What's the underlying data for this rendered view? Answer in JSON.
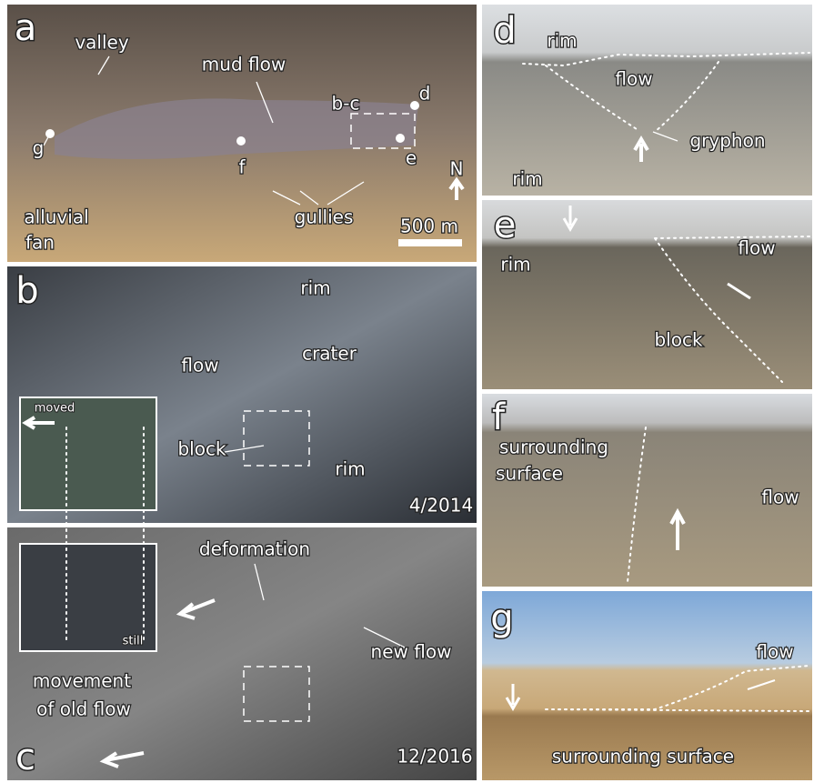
{
  "panels": [
    {
      "label": "a",
      "texts": [
        "valley",
        "mud flow",
        "b-c",
        "d",
        "g",
        "f",
        "e",
        "N",
        "alluvial",
        "fan",
        "gullies",
        "500 m"
      ]
    },
    {
      "label": "b",
      "texts": [
        "rim",
        "flow",
        "crater",
        "moved",
        "block",
        "rim",
        "4/2014"
      ]
    },
    {
      "label": "c",
      "texts": [
        "deformation",
        "still",
        "new flow",
        "movement",
        "of old flow",
        "12/2016"
      ]
    },
    {
      "label": "d",
      "texts": [
        "rim",
        "flow",
        "gryphon",
        "rim"
      ]
    },
    {
      "label": "e",
      "texts": [
        "rim",
        "flow",
        "block"
      ]
    },
    {
      "label": "f",
      "texts": [
        "surrounding",
        "surface",
        "flow"
      ]
    },
    {
      "label": "g",
      "texts": [
        "flow",
        "surrounding surface"
      ]
    }
  ]
}
